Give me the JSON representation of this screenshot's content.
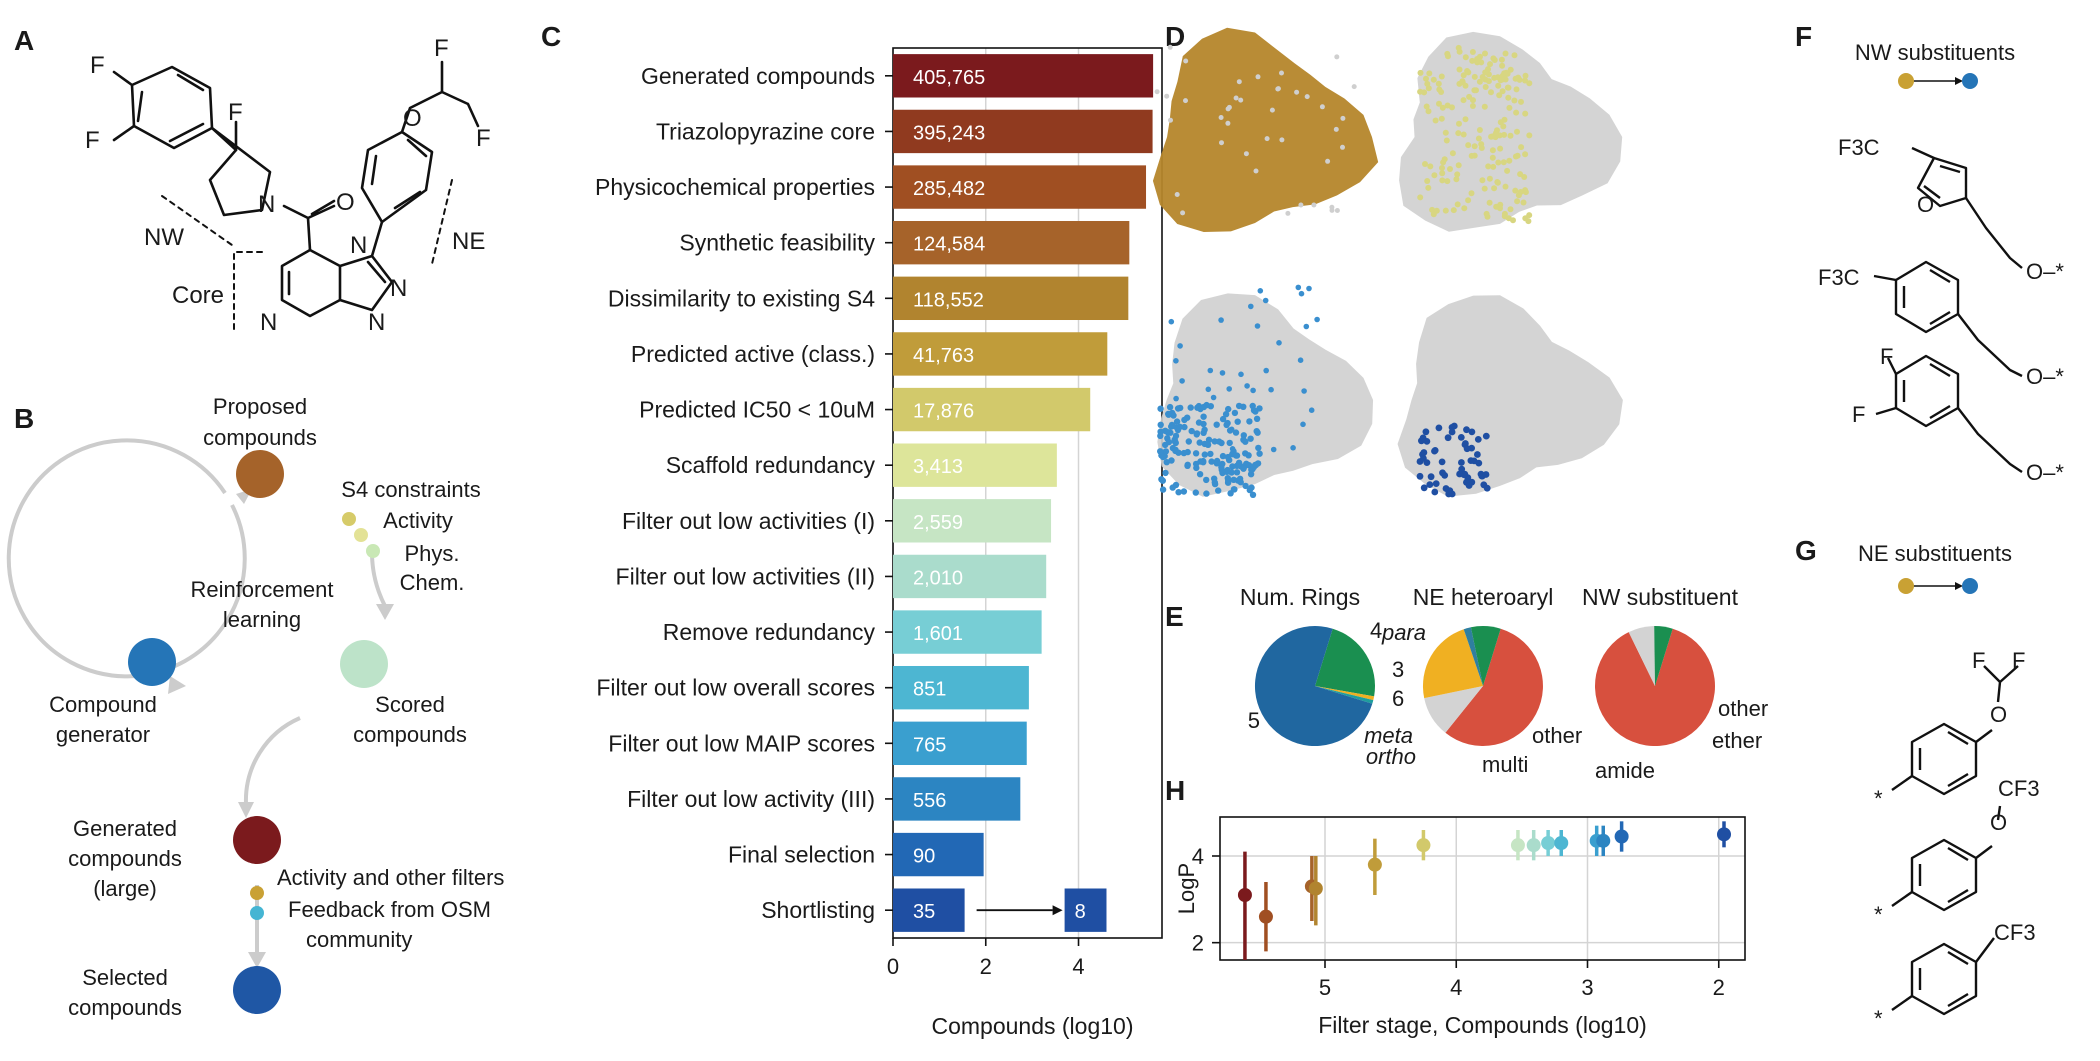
{
  "panel_letters": {
    "a": "A",
    "b": "B",
    "c": "C",
    "d": "D",
    "e": "E",
    "f": "F",
    "g": "G",
    "h": "H"
  },
  "panel_a": {
    "label_nw": "NW",
    "label_ne": "NE",
    "label_core": "Core"
  },
  "panel_b": {
    "proposed": [
      "Proposed",
      "compounds"
    ],
    "constraints": [
      "S4 constraints",
      "Activity",
      "Phys.",
      "Chem."
    ],
    "rl": [
      "Reinforcement",
      "learning"
    ],
    "generator": [
      "Compound",
      "generator"
    ],
    "scored": [
      "Scored",
      "compounds"
    ],
    "generated": [
      "Generated",
      "compounds",
      "(large)"
    ],
    "filters": "Activity and other filters",
    "feedback": [
      "Feedback from OSM",
      "community"
    ],
    "selected": [
      "Selected",
      "compounds"
    ],
    "colors": {
      "proposed": "#a5632a",
      "generator": "#2575b7",
      "scored": "#bde3c9",
      "generated": "#7b1a1d",
      "selected": "#1f57a5",
      "dot_gold": "#c9a134",
      "dot_teal": "#45b5d3",
      "dot_c1": "#d6cb69",
      "dot_c2": "#e3e296",
      "dot_c3": "#c9e8b5",
      "arrow": "#cccccc"
    }
  },
  "panel_f": {
    "title": "NW substituents",
    "formula_a": "F3C",
    "formula_b": "F3C",
    "f_letter": "F"
  },
  "panel_g": {
    "title": "NE substituents",
    "formula": "CF3"
  },
  "chart_data": [
    {
      "type": "bar",
      "orientation": "horizontal",
      "xlabel": "Compounds (log10)",
      "xlim": [
        0,
        5.8
      ],
      "xticks": [
        0,
        2,
        4
      ],
      "grid": true,
      "categories": [
        "Generated compounds",
        "Triazolopyrazine core",
        "Physicochemical properties",
        "Synthetic feasibility",
        "Dissimilarity to existing S4",
        "Predicted active (class.)",
        "Predicted IC50 < 10uM",
        "Scaffold redundancy",
        "Filter out low activities (I)",
        "Filter out low activities (II)",
        "Remove redundancy",
        "Filter out low overall scores",
        "Filter out low MAIP scores",
        "Filter out low activity (III)",
        "Final selection",
        "Shortlisting"
      ],
      "values": [
        405765,
        395243,
        285482,
        124584,
        118552,
        41763,
        17876,
        3413,
        2559,
        2010,
        1601,
        851,
        765,
        556,
        90,
        35
      ],
      "value_labels": [
        "405,765",
        "395,243",
        "285,482",
        "124,584",
        "118,552",
        "41,763",
        "17,876",
        "3,413",
        "2,559",
        "2,010",
        "1,601",
        "851",
        "765",
        "556",
        "90",
        "35"
      ],
      "colors": [
        "#7b1a1d",
        "#903a1f",
        "#a04f22",
        "#a6632a",
        "#b1842f",
        "#c09c3a",
        "#d2c96b",
        "#dde59a",
        "#c6e5c4",
        "#aadccc",
        "#77ced5",
        "#4db6d2",
        "#3a9fcf",
        "#2c85c2",
        "#2268b5",
        "#1f4fa3"
      ],
      "shortlist_extra": {
        "value": 8,
        "label": "8",
        "color": "#1f4fa3"
      }
    },
    {
      "type": "pie",
      "title": "Num. Rings",
      "labels": [
        "4",
        "3",
        "6",
        "5"
      ],
      "values": [
        23,
        1,
        1,
        75
      ],
      "colors": [
        "#1a8f50",
        "#f0b022",
        "#1f9e9e",
        "#2067a0"
      ]
    },
    {
      "type": "pie",
      "title": "NE heteroaryl",
      "labels": [
        "para",
        "other",
        "multi",
        "ortho",
        "meta"
      ],
      "values": [
        56,
        11,
        23,
        2,
        8
      ],
      "colors": [
        "#d7503e",
        "#d3d3d3",
        "#f0b022",
        "#2f7fa0",
        "#1a8f50"
      ]
    },
    {
      "type": "pie",
      "title": "NW substituent",
      "labels": [
        "amide",
        "other",
        "ether"
      ],
      "values": [
        88,
        7,
        5
      ],
      "colors": [
        "#d7503e",
        "#d3d3d3",
        "#1a8f50"
      ]
    },
    {
      "type": "scatter",
      "xlabel": "Filter stage, Compounds (log10)",
      "ylabel": "LogP",
      "x_inverted": true,
      "xlim": [
        5.8,
        1.8
      ],
      "ylim": [
        1.6,
        4.9
      ],
      "xticks": [
        5,
        4,
        3,
        2
      ],
      "yticks": [
        2,
        4
      ],
      "grid": true,
      "points": [
        {
          "x": 5.61,
          "y": 3.1,
          "lo": 1.6,
          "hi": 4.1,
          "color": "#7b1a1d"
        },
        {
          "x": 5.45,
          "y": 2.6,
          "lo": 1.8,
          "hi": 3.4,
          "color": "#a04f22"
        },
        {
          "x": 5.1,
          "y": 3.3,
          "lo": 2.5,
          "hi": 4.0,
          "color": "#a6632a"
        },
        {
          "x": 5.07,
          "y": 3.25,
          "lo": 2.4,
          "hi": 4.0,
          "color": "#b1842f"
        },
        {
          "x": 4.62,
          "y": 3.8,
          "lo": 3.1,
          "hi": 4.4,
          "color": "#c09c3a"
        },
        {
          "x": 4.25,
          "y": 4.25,
          "lo": 3.9,
          "hi": 4.6,
          "color": "#d2c96b"
        },
        {
          "x": 3.53,
          "y": 4.25,
          "lo": 3.9,
          "hi": 4.6,
          "color": "#c6e5c4"
        },
        {
          "x": 3.41,
          "y": 4.25,
          "lo": 3.9,
          "hi": 4.6,
          "color": "#aadccc"
        },
        {
          "x": 3.3,
          "y": 4.3,
          "lo": 4.0,
          "hi": 4.6,
          "color": "#77ced5"
        },
        {
          "x": 3.2,
          "y": 4.3,
          "lo": 4.0,
          "hi": 4.6,
          "color": "#4db6d2"
        },
        {
          "x": 2.93,
          "y": 4.35,
          "lo": 4.0,
          "hi": 4.7,
          "color": "#3a9fcf"
        },
        {
          "x": 2.88,
          "y": 4.35,
          "lo": 4.0,
          "hi": 4.7,
          "color": "#2c85c2"
        },
        {
          "x": 2.74,
          "y": 4.45,
          "lo": 4.1,
          "hi": 4.8,
          "color": "#2268b5"
        },
        {
          "x": 1.96,
          "y": 4.5,
          "lo": 4.2,
          "hi": 4.8,
          "color": "#1f4fa3"
        }
      ]
    }
  ],
  "panel_d": {
    "colors": {
      "grey": "#cfcfcf",
      "gold": "#b5862b",
      "yellow_green": "#d8d681",
      "blue": "#3a8fcf",
      "navy": "#1f4fa3"
    }
  }
}
